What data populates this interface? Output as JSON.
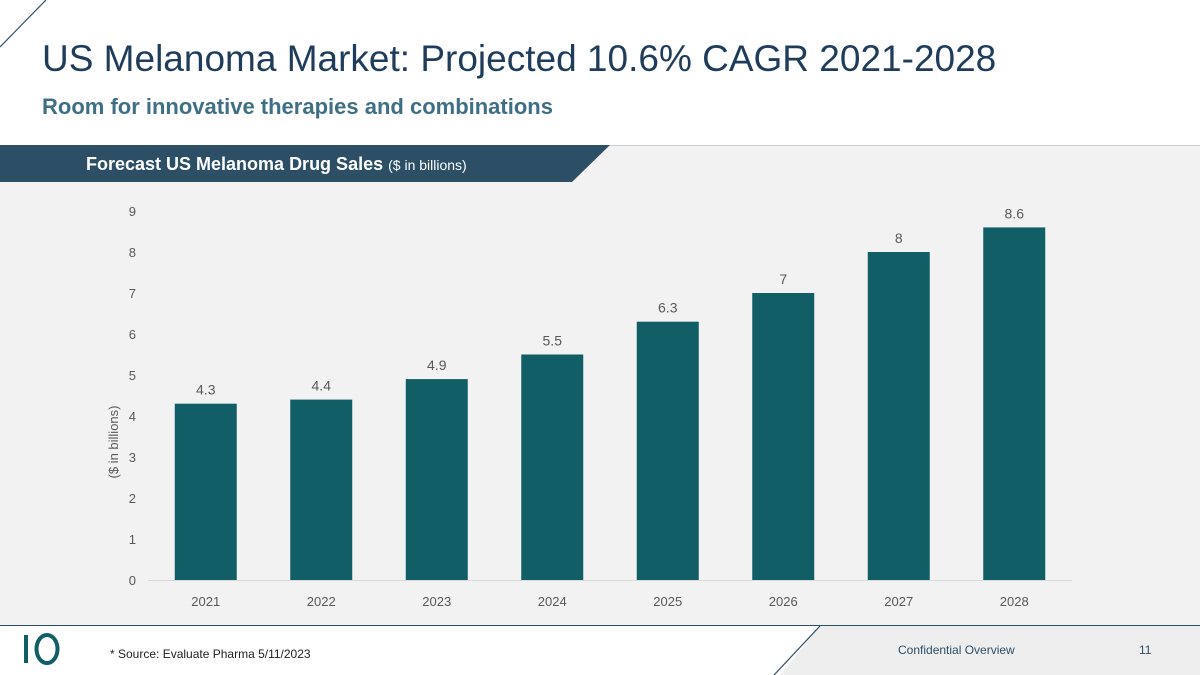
{
  "slide": {
    "title": "US Melanoma Market: Projected 10.6% CAGR 2021-2028",
    "subtitle": "Room for innovative therapies and combinations"
  },
  "banner": {
    "title": "Forecast US Melanoma Drug Sales",
    "unit": "($ in billions)"
  },
  "chart_data": {
    "type": "bar",
    "title": "Forecast US Melanoma Drug Sales",
    "categories": [
      "2021",
      "2022",
      "2023",
      "2024",
      "2025",
      "2026",
      "2027",
      "2028"
    ],
    "values": [
      4.3,
      4.4,
      4.9,
      5.5,
      6.3,
      7,
      8,
      8.6
    ],
    "value_labels": [
      "4.3",
      "4.4",
      "4.9",
      "5.5",
      "6.3",
      "7",
      "8",
      "8.6"
    ],
    "xlabel": "",
    "ylabel": "($ in billions)",
    "ylim": [
      0,
      9
    ],
    "yticks": [
      "0",
      "1",
      "2",
      "3",
      "4",
      "5",
      "6",
      "7",
      "8",
      "9"
    ],
    "grid": false,
    "bar_color": "#115e67"
  },
  "footer": {
    "source": "* Source: Evaluate Pharma 5/11/2023",
    "confidential": "Confidential Overview",
    "page_number": "11"
  },
  "colors": {
    "brand_dark": "#2c4f66",
    "title_text": "#1f3d5a",
    "subtitle_text": "#3f6f84"
  }
}
